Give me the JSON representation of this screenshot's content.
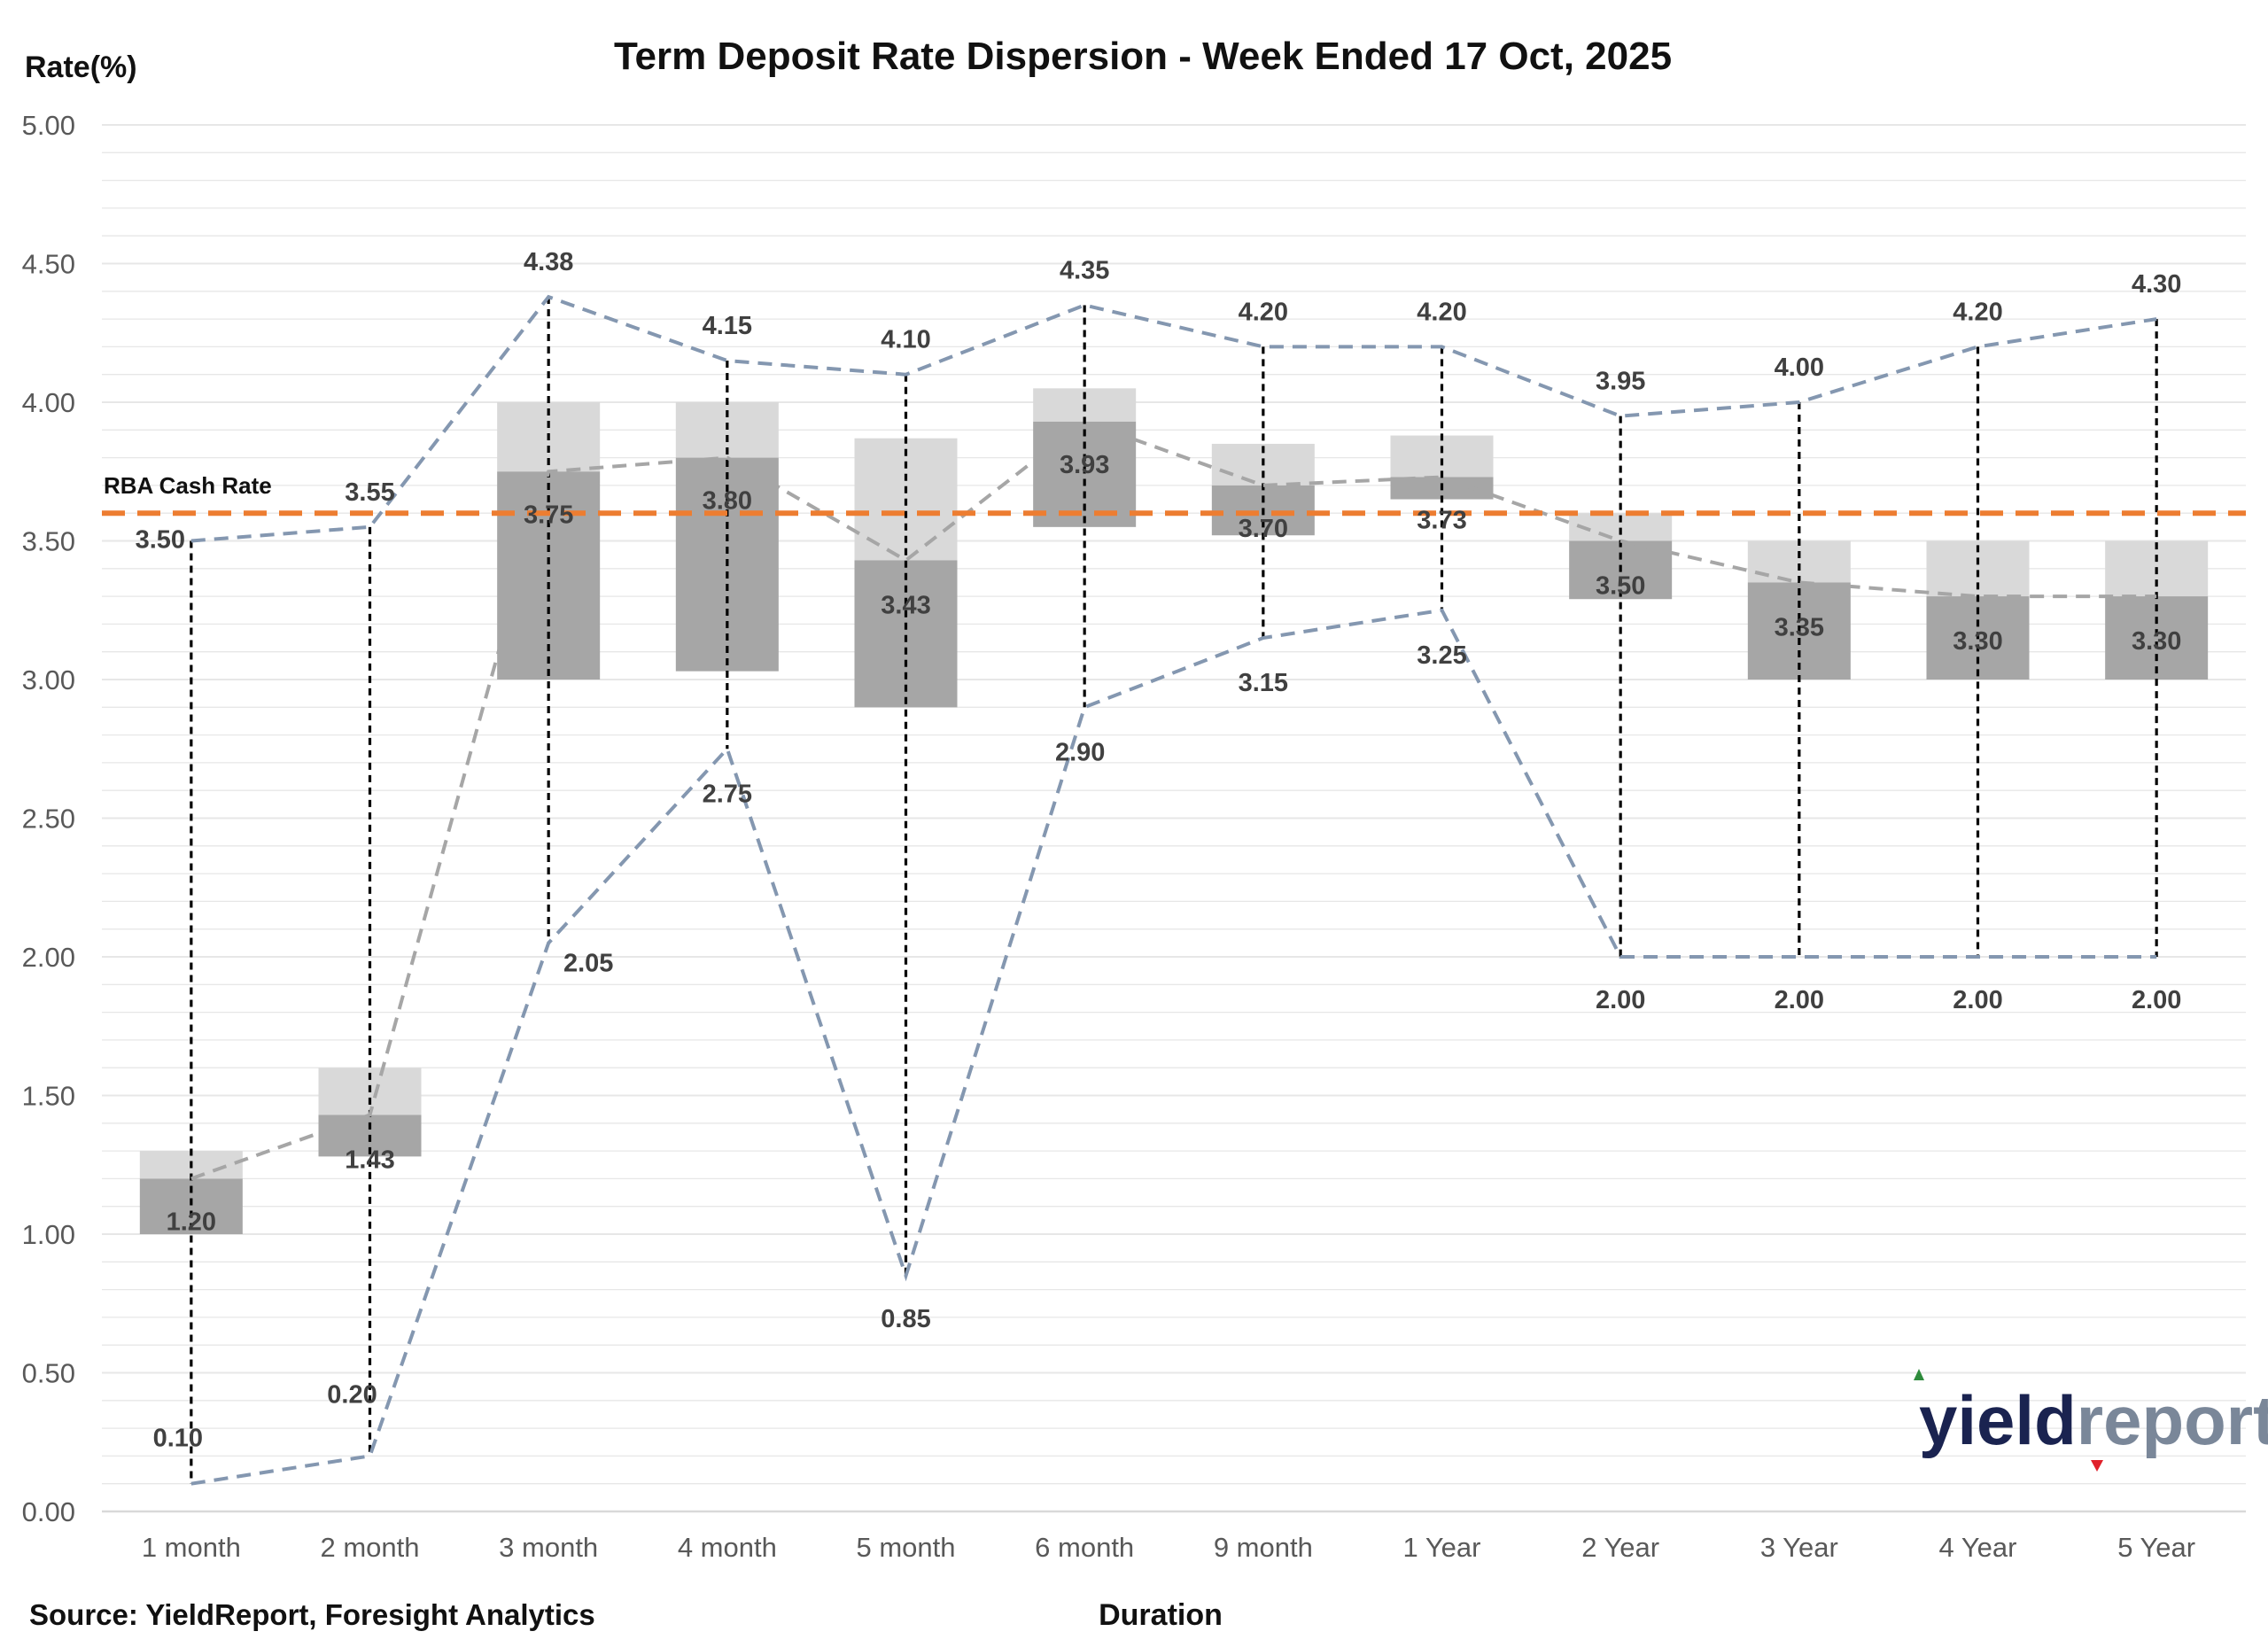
{
  "chart_data": {
    "type": "box",
    "title": "Term Deposit Rate Dispersion - Week Ended 17 Oct, 2025",
    "ylabel": "Rate(%)",
    "xlabel": "Duration",
    "source": "Source: YieldReport, Foresight Analytics",
    "ylim": [
      0,
      5
    ],
    "y_ticks": [
      "0.00",
      "0.50",
      "1.00",
      "1.50",
      "2.00",
      "2.50",
      "3.00",
      "3.50",
      "4.00",
      "4.50",
      "5.00"
    ],
    "y_tick_values": [
      0,
      0.5,
      1,
      1.5,
      2,
      2.5,
      3,
      3.5,
      4,
      4.5,
      5
    ],
    "grid": true,
    "categories": [
      "1 month",
      "2 month",
      "3 month",
      "4 month",
      "5 month",
      "6 month",
      "9 month",
      "1  Year",
      "2  Year",
      "3  Year",
      "4  Year",
      "5  Year"
    ],
    "max": [
      3.5,
      3.55,
      4.38,
      4.15,
      4.1,
      4.35,
      4.2,
      4.2,
      3.95,
      4.0,
      4.2,
      4.3
    ],
    "max_labels": [
      "3.50",
      "3.55",
      "4.38",
      "4.15",
      "4.10",
      "4.35",
      "4.20",
      "4.20",
      "3.95",
      "4.00",
      "4.20",
      "4.30"
    ],
    "min": [
      0.1,
      0.2,
      2.05,
      2.75,
      0.85,
      2.9,
      3.15,
      3.25,
      2.0,
      2.0,
      2.0,
      2.0
    ],
    "min_labels": [
      "0.10",
      "0.20",
      "2.05",
      "2.75",
      "0.85",
      "2.90",
      "3.15",
      "3.25",
      "2.00",
      "2.00",
      "2.00",
      "2.00"
    ],
    "median": [
      1.2,
      1.43,
      3.75,
      3.8,
      3.43,
      3.93,
      3.7,
      3.73,
      3.5,
      3.35,
      3.3,
      3.3
    ],
    "median_labels": [
      "1.20",
      "1.43",
      "3.75",
      "3.80",
      "3.43",
      "3.93",
      "3.70",
      "3.73",
      "3.50",
      "3.35",
      "3.30",
      "3.30"
    ],
    "q1": [
      1.0,
      1.28,
      3.0,
      3.03,
      2.9,
      3.55,
      3.52,
      3.65,
      3.29,
      3.0,
      3.0,
      3.0
    ],
    "q3": [
      1.3,
      1.6,
      4.0,
      4.0,
      3.87,
      4.05,
      3.85,
      3.88,
      3.6,
      3.5,
      3.5,
      3.5
    ],
    "reference_line": {
      "label": "RBA Cash Rate",
      "value": 3.6,
      "color": "#ed7d31"
    },
    "colors": {
      "box_lower": "#a6a6a6",
      "box_upper": "#d9d9d9",
      "whisker": "#000000",
      "max_min_line": "#8497b0",
      "median_line": "#a6a6a6",
      "grid": "#e7e7e7",
      "axis": "#d9d9d9"
    }
  },
  "brand": {
    "part1": "yield",
    "part2": "report",
    "up_arrow_color": "#2e8b3c",
    "down_arrow_color": "#e0202a"
  }
}
